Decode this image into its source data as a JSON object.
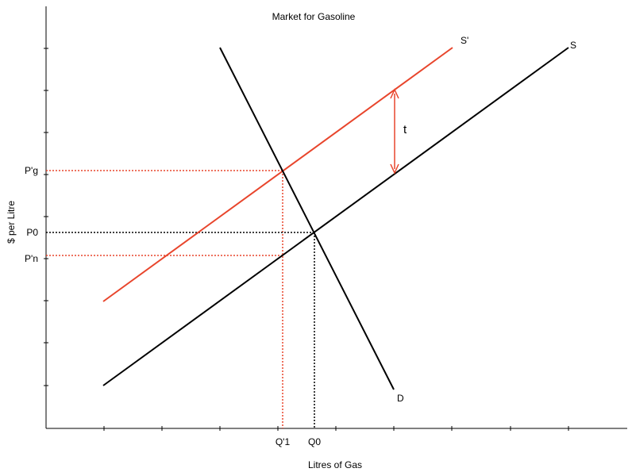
{
  "title": "Market for Gasoline",
  "x_axis_label": "Litres of Gas",
  "y_axis_label": "$ per Litre",
  "curves": {
    "supply": "S",
    "supply_shifted": "S'",
    "demand": "D",
    "tax": "t"
  },
  "price_labels": {
    "p_gross": "P'g",
    "p0": "P0",
    "p_net": "P'n"
  },
  "quantity_labels": {
    "q1": "Q'1",
    "q0": "Q0"
  },
  "colors": {
    "original_curves": "#000000",
    "shifted_supply": "#e8452c",
    "guide_red": "#e8452c",
    "guide_black": "#000000"
  }
}
